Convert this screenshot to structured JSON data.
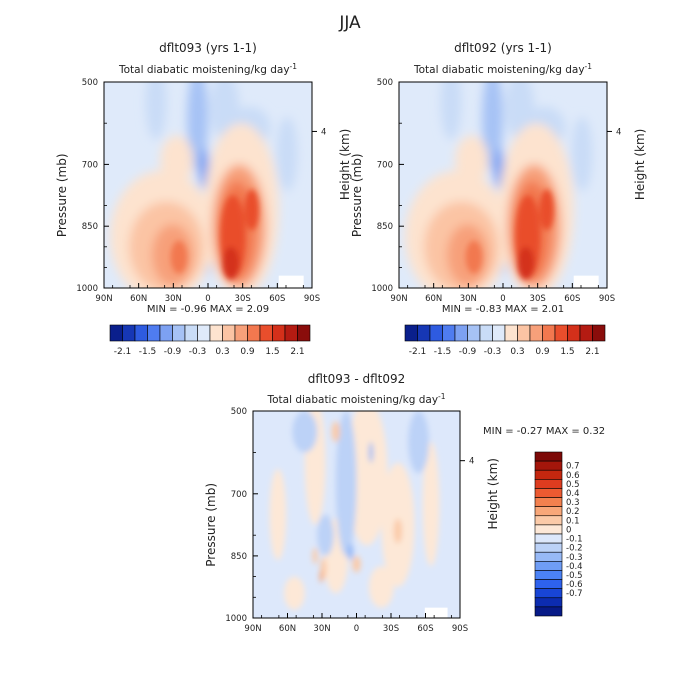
{
  "figure_title": "JJA",
  "colors": {
    "main_scale": [
      "#0a1f8c",
      "#1637b5",
      "#2e5be0",
      "#4f7cf0",
      "#7da1f2",
      "#a6c2f5",
      "#c9dcf7",
      "#dfeafa",
      "#fde3cf",
      "#fbc4a4",
      "#f7a07a",
      "#f2784f",
      "#e94e2c",
      "#d4301a",
      "#b41b12",
      "#8a0d0b"
    ],
    "diff_scale": [
      "#071a87",
      "#0c2cb0",
      "#1845d6",
      "#2e62ee",
      "#4b82f5",
      "#6f9df5",
      "#97b9f6",
      "#bcd2f7",
      "#dde8fb",
      "#fde8d7",
      "#fbcaa8",
      "#f8a779",
      "#f3814f",
      "#ec5a31",
      "#dd3c1f",
      "#c4270f",
      "#a4160b",
      "#7d0907"
    ]
  },
  "chart_data": [
    {
      "type": "heatmap",
      "title": "dflt093 (yrs 1-1)",
      "subtitle": "Total diabatic moistening/kg day",
      "subtitle_sup": "-1",
      "ylabel": "Pressure (mb)",
      "ylabel_right": "Height (km)",
      "yticks": [
        "500",
        "700",
        "850",
        "1000"
      ],
      "ytick_right": "4",
      "xticks": [
        "90N",
        "60N",
        "30N",
        "0",
        "30S",
        "60S",
        "90S"
      ],
      "ylim": [
        1000,
        500
      ],
      "xlim": [
        "90N",
        "90S"
      ],
      "stats": "MIN =  -0.96   MAX =    2.09",
      "min": -0.96,
      "max": 2.09,
      "colorbar_labels": [
        "-2.1",
        "-1.5",
        "-0.9",
        "-0.3",
        "0.3",
        "0.9",
        "1.5",
        "2.1"
      ]
    },
    {
      "type": "heatmap",
      "title": "dflt092 (yrs 1-1)",
      "subtitle": "Total diabatic moistening/kg day",
      "subtitle_sup": "-1",
      "ylabel": "Pressure (mb)",
      "ylabel_right": "Height (km)",
      "yticks": [
        "500",
        "700",
        "850",
        "1000"
      ],
      "ytick_right": "4",
      "xticks": [
        "90N",
        "60N",
        "30N",
        "0",
        "30S",
        "60S",
        "90S"
      ],
      "ylim": [
        1000,
        500
      ],
      "xlim": [
        "90N",
        "90S"
      ],
      "stats": "MIN =  -0.83   MAX =    2.01",
      "min": -0.83,
      "max": 2.01,
      "colorbar_labels": [
        "-2.1",
        "-1.5",
        "-0.9",
        "-0.3",
        "0.3",
        "0.9",
        "1.5",
        "2.1"
      ]
    },
    {
      "type": "heatmap",
      "title": "dflt093 - dflt092",
      "subtitle": "Total diabatic moistening/kg day",
      "subtitle_sup": "-1",
      "ylabel": "Pressure (mb)",
      "ylabel_right": "Height (km)",
      "yticks": [
        "500",
        "700",
        "850",
        "1000"
      ],
      "ytick_right": "4",
      "xticks": [
        "90N",
        "60N",
        "30N",
        "0",
        "30S",
        "60S",
        "90S"
      ],
      "ylim": [
        1000,
        500
      ],
      "xlim": [
        "90N",
        "90S"
      ],
      "stats": "MIN =   -0.27    MAX =    0.32",
      "min": -0.27,
      "max": 0.32,
      "colorbar_labels": [
        "0.7",
        "0.6",
        "0.5",
        "0.4",
        "0.3",
        "0.2",
        "0.1",
        "0",
        "-0.1",
        "-0.2",
        "-0.3",
        "-0.4",
        "-0.5",
        "-0.6",
        "-0.7"
      ]
    }
  ]
}
